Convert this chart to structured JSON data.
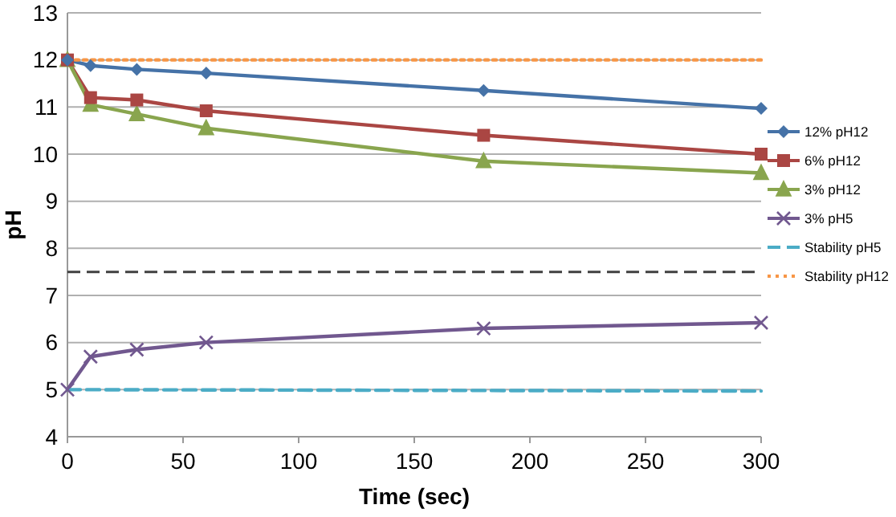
{
  "chart_data": {
    "type": "line",
    "xlabel": "Time (sec)",
    "ylabel": "pH",
    "xlim": [
      0,
      300
    ],
    "xticks": [
      0,
      50,
      100,
      150,
      200,
      250,
      300
    ],
    "ylim": [
      4,
      13
    ],
    "yticks": [
      4,
      5,
      6,
      7,
      8,
      9,
      10,
      11,
      12,
      13
    ],
    "grid": "y",
    "legend": "right",
    "line_style": "solid",
    "ref_lines": [
      {
        "axis": "y",
        "value": 7.5,
        "label": null,
        "color": "#404040",
        "line_style": "dashed"
      }
    ],
    "series": [
      {
        "name": "12% pH12",
        "color": "#4572a7",
        "marker": "diamond",
        "x": [
          0,
          10,
          30,
          60,
          180,
          300
        ],
        "values": [
          12,
          11.88,
          11.8,
          11.72,
          11.35,
          10.97
        ]
      },
      {
        "name": "6% pH12",
        "color": "#aa4643",
        "marker": "square",
        "x": [
          0,
          10,
          30,
          60,
          180,
          300
        ],
        "values": [
          12,
          11.2,
          11.15,
          10.92,
          10.4,
          10
        ]
      },
      {
        "name": "3% pH12",
        "color": "#89a54e",
        "marker": "triangle",
        "x": [
          0,
          10,
          30,
          60,
          180,
          300
        ],
        "values": [
          12,
          11.05,
          10.85,
          10.55,
          9.85,
          9.6
        ]
      },
      {
        "name": "3% pH5",
        "color": "#71588f",
        "marker": "cross",
        "x": [
          0,
          10,
          30,
          60,
          180,
          300
        ],
        "values": [
          5,
          5.7,
          5.85,
          6.0,
          6.3,
          6.42
        ]
      },
      {
        "name": "Stability pH5",
        "color": "#4bacc6",
        "marker": "none",
        "line_style": "dashed",
        "x": [
          0,
          300
        ],
        "values": [
          5,
          4.97
        ]
      },
      {
        "name": "Stability pH12",
        "color": "#f79646",
        "marker": "none",
        "line_style": "dotted",
        "x": [
          0,
          300
        ],
        "values": [
          12,
          12
        ]
      }
    ]
  }
}
